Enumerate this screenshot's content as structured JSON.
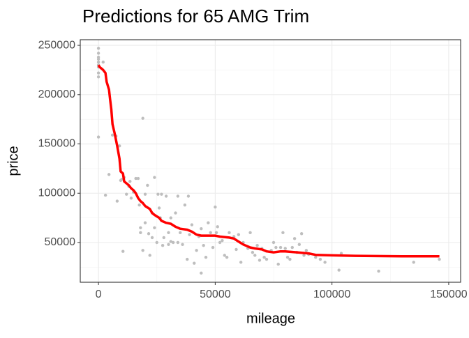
{
  "chart_data": {
    "type": "scatter",
    "title": "Predictions for 65 AMG Trim",
    "xlabel": "mileage",
    "ylabel": "price",
    "xlim": [
      -7800,
      155100
    ],
    "ylim": [
      9700,
      255700
    ],
    "xticks": [
      0,
      50000,
      100000,
      150000
    ],
    "yticks": [
      50000,
      100000,
      150000,
      200000,
      250000
    ],
    "grid": true,
    "points": {
      "color": "#bebebe",
      "x": [
        0,
        0,
        0,
        0,
        0,
        0,
        0,
        0,
        0,
        0,
        2000,
        3000,
        4500,
        6000,
        7500,
        8000,
        9000,
        9500,
        10000,
        10500,
        11000,
        12000,
        13000,
        13500,
        14000,
        15000,
        16000,
        17000,
        17500,
        18000,
        18000,
        19000,
        19000,
        20000,
        20000,
        21000,
        21500,
        22000,
        23000,
        23000,
        24000,
        24000,
        25000,
        25500,
        26000,
        26500,
        27000,
        27500,
        28000,
        29000,
        30000,
        30000,
        31000,
        32000,
        33000,
        34000,
        34000,
        35000,
        36000,
        37000,
        38000,
        38500,
        39000,
        40000,
        41000,
        42000,
        43000,
        44000,
        45000,
        46000,
        47000,
        48000,
        49000,
        50000,
        50500,
        51000,
        52000,
        53000,
        54000,
        55000,
        56000,
        58000,
        59000,
        60000,
        61000,
        62000,
        64000,
        65000,
        66000,
        67000,
        68000,
        69000,
        70000,
        71000,
        72000,
        74000,
        75000,
        76000,
        77000,
        78000,
        79000,
        80000,
        81000,
        82000,
        83000,
        84000,
        85000,
        86000,
        87000,
        88000,
        89000,
        90000,
        93000,
        95000,
        97000,
        104000,
        103000,
        120000,
        135000,
        146000,
        44000,
        31000
      ],
      "y": [
        247000,
        242000,
        238000,
        236000,
        233000,
        230000,
        228000,
        222000,
        218000,
        157000,
        233000,
        98000,
        119000,
        159000,
        158000,
        92000,
        148000,
        113000,
        114000,
        41000,
        116000,
        99000,
        107000,
        112000,
        95000,
        101000,
        115000,
        115000,
        88000,
        65000,
        60000,
        176000,
        42000,
        99000,
        70000,
        108000,
        59000,
        37000,
        80000,
        55000,
        116000,
        65000,
        50000,
        99000,
        85000,
        75000,
        99000,
        47000,
        55000,
        97000,
        60000,
        48000,
        75000,
        50000,
        80000,
        97000,
        50000,
        60000,
        48000,
        88000,
        33000,
        97000,
        58000,
        68000,
        29000,
        42000,
        56000,
        64000,
        47000,
        35000,
        70000,
        60000,
        45000,
        86000,
        60000,
        66000,
        50000,
        52000,
        37000,
        35000,
        60000,
        56000,
        43000,
        58000,
        30000,
        50000,
        44000,
        60000,
        40000,
        37000,
        47000,
        32000,
        44000,
        35000,
        33000,
        42000,
        50000,
        45000,
        28000,
        45000,
        60000,
        44000,
        35000,
        33000,
        45000,
        54000,
        40000,
        48000,
        59000,
        37000,
        42000,
        38000,
        35000,
        33000,
        30000,
        39000,
        22000,
        21000,
        30000,
        33000,
        19000,
        51000
      ]
    },
    "fit": {
      "color": "#ff0000",
      "x": [
        0,
        500,
        2000,
        3000,
        3500,
        4500,
        5000,
        5500,
        6000,
        7000,
        8000,
        9000,
        9500,
        10500,
        11000,
        12000,
        13000,
        14000,
        15000,
        16000,
        17000,
        18000,
        19000,
        20000,
        22000,
        23000,
        24000,
        26000,
        27000,
        29000,
        31000,
        33000,
        35000,
        38000,
        40000,
        42000,
        44000,
        50000,
        52000,
        56000,
        58000,
        60000,
        62000,
        65000,
        67000,
        70000,
        72000,
        75000,
        78000,
        80000,
        85000,
        90000,
        93000,
        100000,
        110000,
        130000,
        146000
      ],
      "y": [
        230000,
        228000,
        225000,
        222000,
        213000,
        205000,
        195000,
        185000,
        170000,
        160000,
        148000,
        135000,
        122000,
        120000,
        112000,
        110000,
        108000,
        105000,
        103000,
        100000,
        95000,
        92000,
        90000,
        87000,
        84000,
        80000,
        78000,
        75000,
        72000,
        70000,
        69000,
        66000,
        64000,
        63000,
        61000,
        58000,
        57000,
        57000,
        56000,
        55000,
        54000,
        51000,
        48000,
        45000,
        44000,
        43000,
        41000,
        40000,
        41000,
        41000,
        40000,
        39000,
        37500,
        37000,
        36500,
        36000,
        36000
      ]
    }
  }
}
